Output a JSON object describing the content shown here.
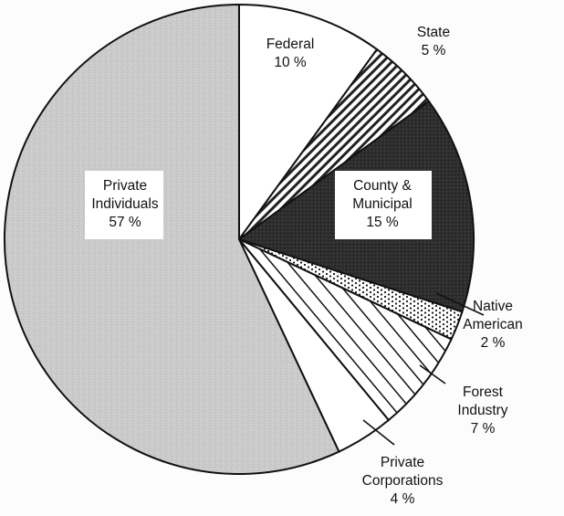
{
  "chart_data": {
    "type": "pie",
    "title": "",
    "slices": [
      {
        "name": "Federal",
        "value": 10,
        "label": "10 %",
        "lines": [
          "Federal",
          "10 %"
        ],
        "fill": "#ffffff",
        "pattern": "solid"
      },
      {
        "name": "State",
        "value": 5,
        "label": "5 %",
        "lines": [
          "State",
          "5 %"
        ],
        "fill": "#ffffff",
        "pattern": "diagonal-hatch"
      },
      {
        "name": "County & Municipal",
        "value": 15,
        "label": "15 %",
        "lines": [
          "County &",
          "Municipal",
          "15 %"
        ],
        "fill": "#333333",
        "pattern": "dark-stipple"
      },
      {
        "name": "Native American",
        "value": 2,
        "label": "2 %",
        "lines": [
          "Native",
          "American",
          "2 %"
        ],
        "fill": "#ffffff",
        "pattern": "dots"
      },
      {
        "name": "Forest Industry",
        "value": 7,
        "label": "7 %",
        "lines": [
          "Forest",
          "Industry",
          "7 %"
        ],
        "fill": "#ffffff",
        "pattern": "wide-diagonal-hatch"
      },
      {
        "name": "Private Corporations",
        "value": 4,
        "label": "4 %",
        "lines": [
          "Private",
          "Corporations",
          "4 %"
        ],
        "fill": "#ffffff",
        "pattern": "solid"
      },
      {
        "name": "Private Individuals",
        "value": 57,
        "label": "57 %",
        "lines": [
          "Private",
          "Individuals",
          "57 %"
        ],
        "fill": "#c8c8c8",
        "pattern": "light-stipple"
      }
    ]
  }
}
